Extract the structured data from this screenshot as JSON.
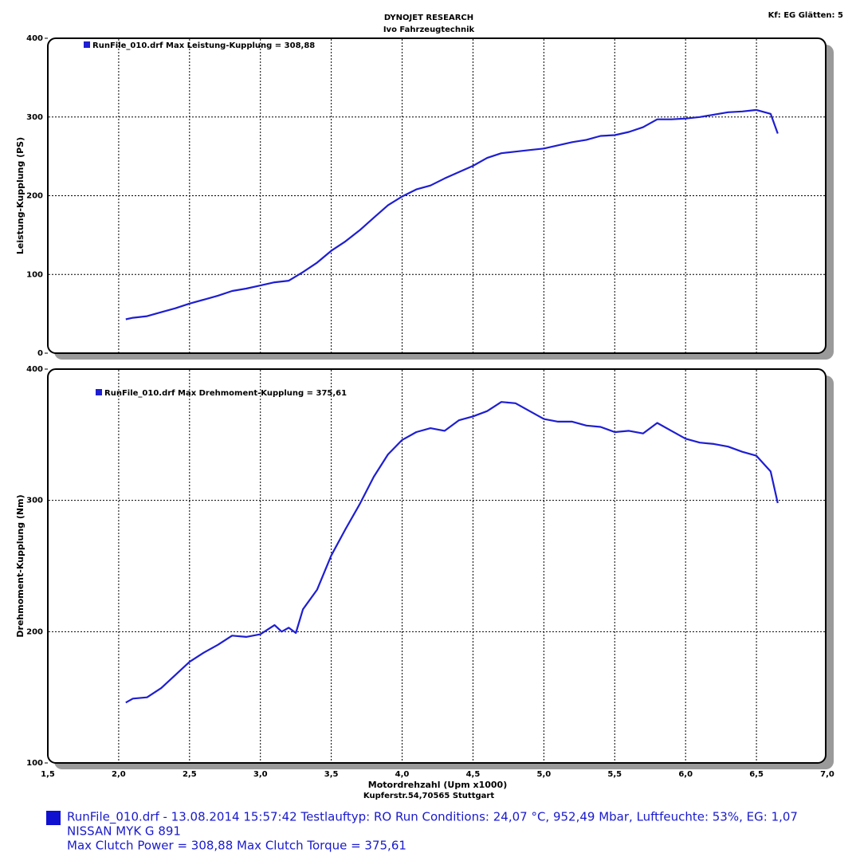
{
  "header": {
    "title": "DYNOJET RESEARCH",
    "subtitle": "Ivo Fahrzeugtechnik",
    "settings": "Kf: EG  Glätten: 5",
    "address": "Kupferstr.54,70565 Stuttgart"
  },
  "chart_data": [
    {
      "type": "line",
      "y_label": "Leistung-Kupplung (PS)",
      "legend": "top-left",
      "grid": true,
      "xlim": [
        1.5,
        7.0
      ],
      "ylim": [
        0,
        400
      ],
      "yticks": [
        0,
        100,
        200,
        300,
        400
      ],
      "x": [
        2.05,
        2.1,
        2.2,
        2.3,
        2.4,
        2.5,
        2.6,
        2.7,
        2.8,
        2.9,
        3.0,
        3.1,
        3.2,
        3.3,
        3.4,
        3.5,
        3.6,
        3.7,
        3.8,
        3.9,
        4.0,
        4.1,
        4.2,
        4.3,
        4.4,
        4.5,
        4.6,
        4.7,
        4.8,
        4.9,
        5.0,
        5.1,
        5.2,
        5.3,
        5.4,
        5.5,
        5.6,
        5.7,
        5.8,
        5.9,
        6.0,
        6.1,
        6.2,
        6.3,
        6.4,
        6.5,
        6.6,
        6.65
      ],
      "series": [
        {
          "name": "RunFile_010.drf Max Leistung-Kupplung = 308,88",
          "color": "#1e1ed2",
          "values": [
            43,
            45,
            47,
            52,
            57,
            63,
            68,
            73,
            79,
            82,
            86,
            90,
            92,
            103,
            115,
            130,
            142,
            156,
            172,
            188,
            199,
            208,
            213,
            222,
            230,
            238,
            248,
            254,
            256,
            258,
            260,
            264,
            268,
            271,
            276,
            277,
            281,
            287,
            297,
            297,
            298,
            300,
            303,
            306,
            307,
            309,
            304,
            279
          ]
        }
      ]
    },
    {
      "type": "line",
      "y_label": "Drehmoment-Kupplung (Nm)",
      "x_label": "Motordrehzahl (Upm x1000)",
      "legend": "top-left",
      "grid": true,
      "xlim": [
        1.5,
        7.0
      ],
      "ylim": [
        100,
        400
      ],
      "yticks": [
        100,
        200,
        300,
        400
      ],
      "xticks": [
        {
          "value": 1.5,
          "label": "1,5"
        },
        {
          "value": 2.0,
          "label": "2,0"
        },
        {
          "value": 2.5,
          "label": "2,5"
        },
        {
          "value": 3.0,
          "label": "3,0"
        },
        {
          "value": 3.5,
          "label": "3,5"
        },
        {
          "value": 4.0,
          "label": "4,0"
        },
        {
          "value": 4.5,
          "label": "4,5"
        },
        {
          "value": 5.0,
          "label": "5,0"
        },
        {
          "value": 5.5,
          "label": "5,5"
        },
        {
          "value": 6.0,
          "label": "6,0"
        },
        {
          "value": 6.5,
          "label": "6,5"
        },
        {
          "value": 7.0,
          "label": "7,0"
        }
      ],
      "x": [
        2.05,
        2.1,
        2.2,
        2.3,
        2.4,
        2.5,
        2.6,
        2.7,
        2.8,
        2.9,
        3.0,
        3.1,
        3.15,
        3.2,
        3.25,
        3.3,
        3.4,
        3.5,
        3.6,
        3.7,
        3.8,
        3.9,
        4.0,
        4.1,
        4.2,
        4.3,
        4.4,
        4.5,
        4.6,
        4.7,
        4.8,
        4.9,
        5.0,
        5.1,
        5.2,
        5.3,
        5.4,
        5.5,
        5.6,
        5.7,
        5.8,
        5.9,
        6.0,
        6.1,
        6.2,
        6.3,
        6.4,
        6.5,
        6.6,
        6.65
      ],
      "series": [
        {
          "name": "RunFile_010.drf Max Drehmoment-Kupplung = 375,61",
          "color": "#1e1ed2",
          "values": [
            146,
            149,
            150,
            157,
            167,
            177,
            184,
            190,
            197,
            196,
            198,
            205,
            200,
            203,
            199,
            217,
            232,
            258,
            278,
            297,
            318,
            335,
            346,
            352,
            355,
            353,
            361,
            364,
            368,
            375,
            374,
            368,
            362,
            360,
            360,
            357,
            356,
            352,
            353,
            351,
            359,
            353,
            347,
            344,
            343,
            341,
            337,
            334,
            322,
            298
          ]
        }
      ]
    }
  ],
  "footer": {
    "line1": "RunFile_010.drf - 13.08.2014 15:57:42  Testlauftyp: RO  Run Conditions: 24,07 °C, 952,49 Mbar,  Luftfeuchte: 53%, EG: 1,07",
    "line2": "NISSAN MYK G 891",
    "line3": "Max Clutch Power = 308,88  Max Clutch Torque = 375,61"
  }
}
